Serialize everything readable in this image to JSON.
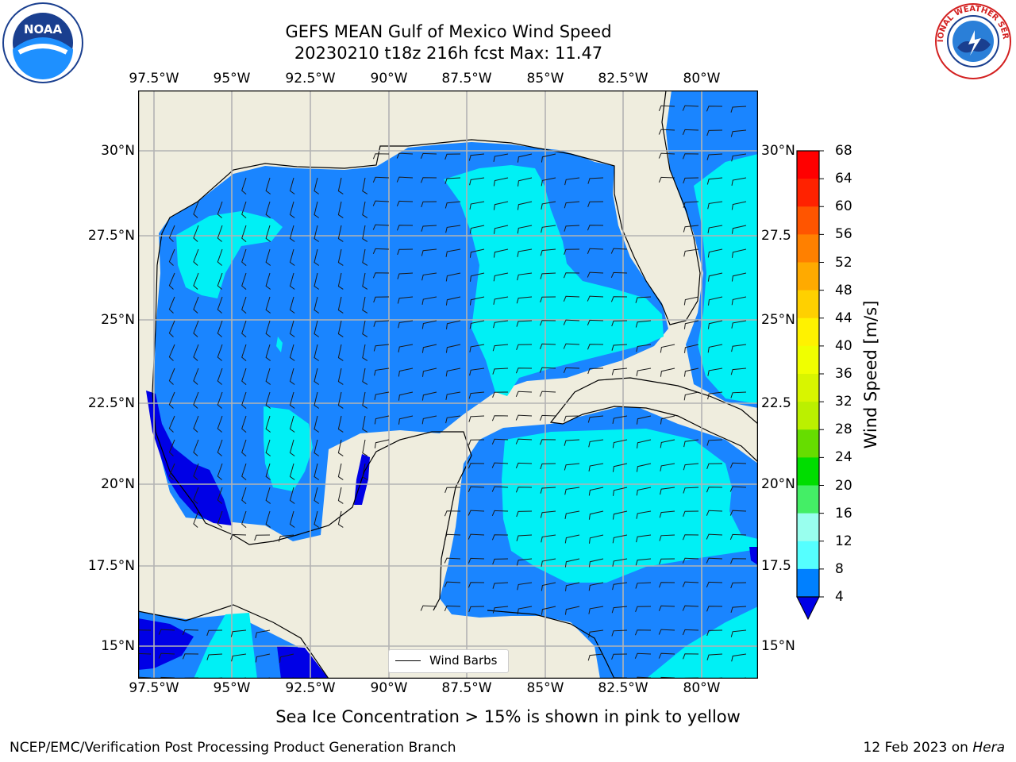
{
  "title": {
    "line1": "GEFS MEAN Gulf of Mexico Wind Speed",
    "line2": "20230210 t18z 216h fcst   Max: 11.47"
  },
  "lon_ticks": [
    "97.5°W",
    "95°W",
    "92.5°W",
    "90°W",
    "87.5°W",
    "85°W",
    "82.5°W",
    "80°W"
  ],
  "lat_ticks_left": [
    "30°N",
    "27.5°N",
    "25°N",
    "22.5°N",
    "20°N",
    "17.5°N",
    "15°N"
  ],
  "lat_ticks_right": [
    "30°N",
    "27.5",
    "25°N",
    "22.5",
    "20°N",
    "17.5",
    "15°N"
  ],
  "legend": {
    "label": "Wind Barbs"
  },
  "colorbar": {
    "label": "Wind Speed [m/s]",
    "ticks": [
      "68",
      "64",
      "60",
      "56",
      "52",
      "48",
      "44",
      "40",
      "36",
      "32",
      "28",
      "24",
      "20",
      "16",
      "12",
      "8",
      "4"
    ],
    "colors": [
      "#ff0000",
      "#ff2200",
      "#ff5500",
      "#ff8000",
      "#ffaa00",
      "#ffd000",
      "#fff200",
      "#f0ff00",
      "#d8f500",
      "#bbf000",
      "#66dd00",
      "#00dd00",
      "#44ee66",
      "#99ffee",
      "#55ffff",
      "#00f0ff",
      "#0080ff"
    ],
    "extend_color": "#0000e6"
  },
  "map_colors": {
    "land": "#efedde",
    "level_4_8": "#1a85ff",
    "level_8_12": "#00f0f5",
    "level_below_4": "#0000e6"
  },
  "sea_ice_note": "Sea Ice Concentration > 15% is shown in pink to yellow",
  "footer": {
    "left": "NCEP/EMC/Verification Post Processing Product Generation Branch",
    "right_date": "12 Feb 2023 on ",
    "right_machine": "Hera"
  },
  "logos": {
    "noaa_text": "NOAA",
    "nws_text": "NATIONAL WEATHER SERVICE"
  }
}
